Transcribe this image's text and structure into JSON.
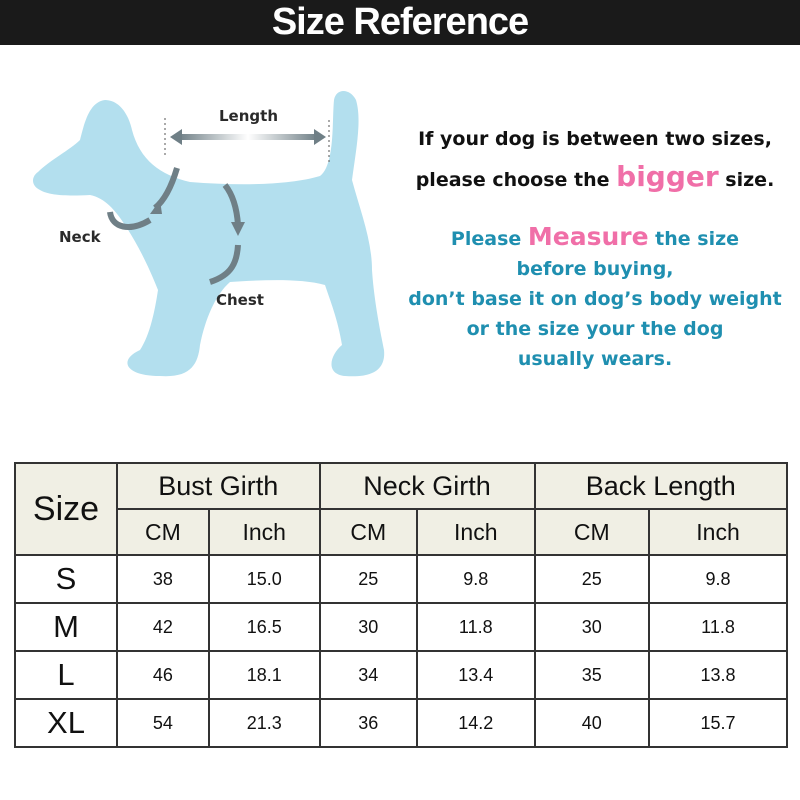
{
  "banner": {
    "title": "Size Reference"
  },
  "diagram": {
    "labels": {
      "length": "Length",
      "neck": "Neck",
      "chest": "Chest"
    },
    "colors": {
      "dog": "#b3dfee",
      "arrow": "#6f7f86"
    }
  },
  "notes": {
    "line1": "If your dog is between two sizes,",
    "line2_pre": "please choose the ",
    "line2_highlight": "bigger",
    "line2_post": " size.",
    "measure_pre": "Please ",
    "measure_highlight": "Measure",
    "measure_post": " the size",
    "line4": "before buying,",
    "line5": "don’t base it on dog’s body weight",
    "line6": "or the size your the dog",
    "line7": "usually wears.",
    "colors": {
      "highlight": "#f06fa8",
      "teal": "#1f8fb0"
    }
  },
  "table": {
    "size_header": "Size",
    "groups": [
      "Bust Girth",
      "Neck Girth",
      "Back Length"
    ],
    "units": [
      "CM",
      "Inch",
      "CM",
      "Inch",
      "CM",
      "Inch"
    ],
    "rows": [
      {
        "size": "S",
        "values": [
          "38",
          "15.0",
          "25",
          "9.8",
          "25",
          "9.8"
        ]
      },
      {
        "size": "M",
        "values": [
          "42",
          "16.5",
          "30",
          "11.8",
          "30",
          "11.8"
        ]
      },
      {
        "size": "L",
        "values": [
          "46",
          "18.1",
          "34",
          "13.4",
          "35",
          "13.8"
        ]
      },
      {
        "size": "XL",
        "values": [
          "54",
          "21.3",
          "36",
          "14.2",
          "40",
          "15.7"
        ]
      }
    ]
  }
}
